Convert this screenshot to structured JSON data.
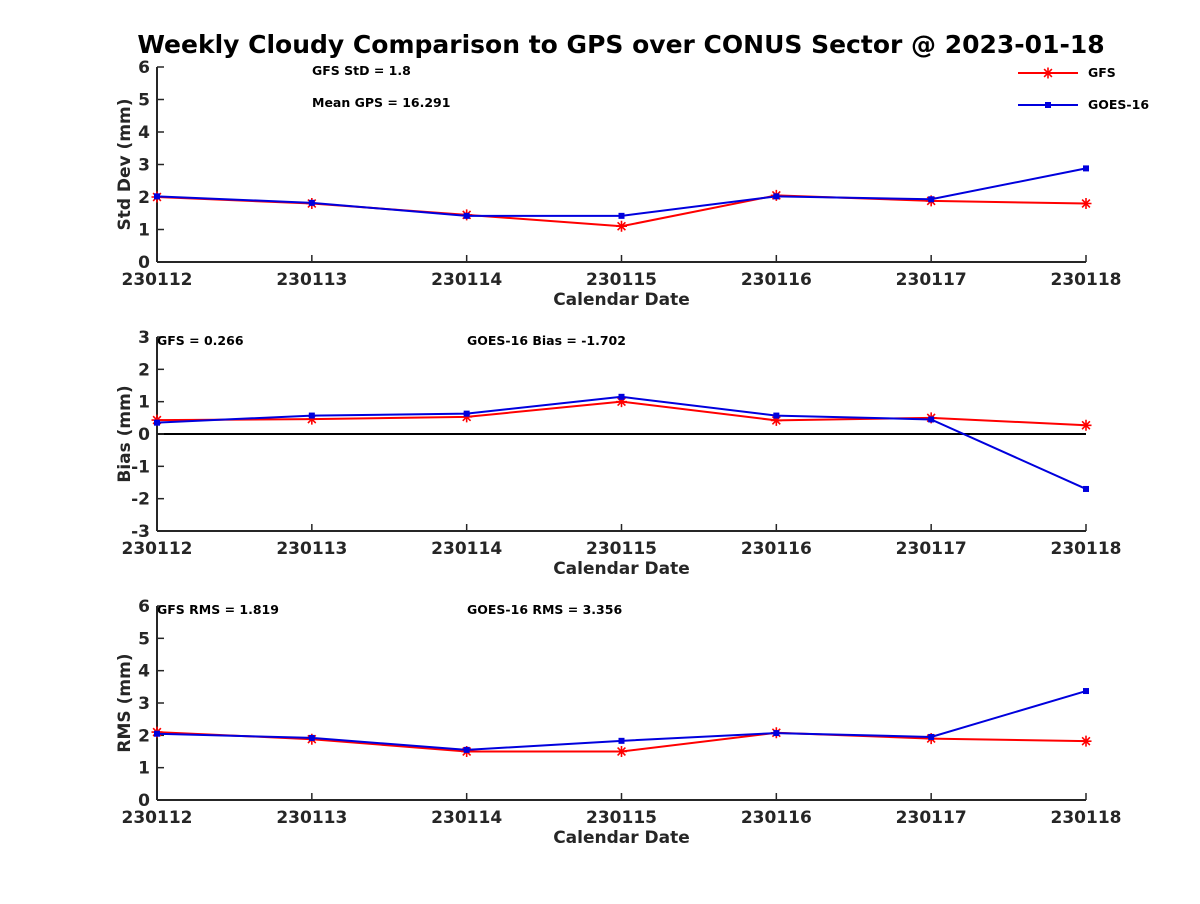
{
  "title": "Weekly Cloudy Comparison to GPS over CONUS Sector @ 2023-01-18",
  "colors": {
    "gfs": "#ff0000",
    "goes": "#0000dd",
    "axis": "#262626"
  },
  "legend": {
    "placement": "top-right",
    "entries": [
      {
        "name": "GFS",
        "color": "#ff0000",
        "marker": "asterisk"
      },
      {
        "name": "GOES-16",
        "color": "#0000dd",
        "marker": "square"
      }
    ]
  },
  "chart_data": [
    {
      "type": "line",
      "xlabel": "Calendar Date",
      "ylabel": "Std Dev (mm)",
      "categories": [
        "230112",
        "230113",
        "230114",
        "230115",
        "230116",
        "230117",
        "230118"
      ],
      "ylim": [
        0,
        6
      ],
      "yticks": [
        "0",
        "1",
        "2",
        "3",
        "4",
        "5",
        "6"
      ],
      "zero_line": false,
      "annotations": [
        "GFS StD = 1.8",
        "Mean GPS = 16.291"
      ],
      "series": [
        {
          "name": "GFS",
          "values": [
            2.0,
            1.8,
            1.45,
            1.1,
            2.05,
            1.88,
            1.8
          ]
        },
        {
          "name": "GOES-16",
          "values": [
            2.02,
            1.82,
            1.42,
            1.42,
            2.02,
            1.93,
            2.88
          ]
        }
      ]
    },
    {
      "type": "line",
      "xlabel": "Calendar Date",
      "ylabel": "Bias (mm)",
      "categories": [
        "230112",
        "230113",
        "230114",
        "230115",
        "230116",
        "230117",
        "230118"
      ],
      "ylim": [
        -3,
        3
      ],
      "yticks": [
        "-3",
        "-2",
        "-1",
        "0",
        "1",
        "2",
        "3"
      ],
      "zero_line": true,
      "annotations": [
        "GFS = 0.266",
        "GOES-16 Bias  = -1.702"
      ],
      "series": [
        {
          "name": "GFS",
          "values": [
            0.43,
            0.46,
            0.53,
            1.0,
            0.42,
            0.5,
            0.27
          ]
        },
        {
          "name": "GOES-16",
          "values": [
            0.35,
            0.57,
            0.63,
            1.15,
            0.57,
            0.45,
            -1.7
          ]
        }
      ]
    },
    {
      "type": "line",
      "xlabel": "Calendar Date",
      "ylabel": "RMS (mm)",
      "categories": [
        "230112",
        "230113",
        "230114",
        "230115",
        "230116",
        "230117",
        "230118"
      ],
      "ylim": [
        0,
        6
      ],
      "yticks": [
        "0",
        "1",
        "2",
        "3",
        "4",
        "5",
        "6"
      ],
      "zero_line": false,
      "annotations": [
        "GFS RMS = 1.819",
        "GOES-16 RMS = 3.356"
      ],
      "series": [
        {
          "name": "GFS",
          "values": [
            2.1,
            1.88,
            1.5,
            1.5,
            2.08,
            1.9,
            1.82
          ]
        },
        {
          "name": "GOES-16",
          "values": [
            2.05,
            1.92,
            1.55,
            1.83,
            2.07,
            1.95,
            3.37
          ]
        }
      ]
    }
  ]
}
